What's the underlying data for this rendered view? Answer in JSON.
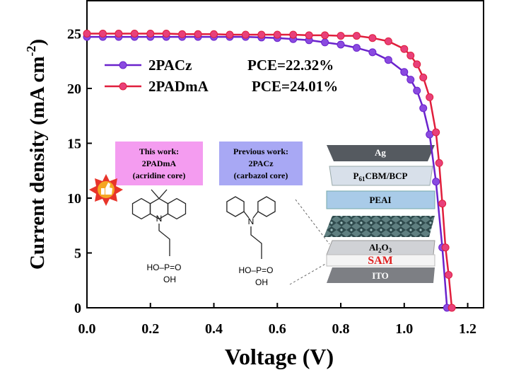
{
  "chart_data": {
    "type": "line",
    "xlabel": "Voltage (V)",
    "ylabel": [
      "Current density (mA cm",
      "-2",
      ")"
    ],
    "xlim": [
      0,
      1.25
    ],
    "ylim": [
      0,
      28
    ],
    "xticks": [
      {
        "value": 0,
        "label": "0.0"
      },
      {
        "value": 0.2,
        "label": "0.2"
      },
      {
        "value": 0.4,
        "label": "0.4"
      },
      {
        "value": 0.6,
        "label": "0.6"
      },
      {
        "value": 0.8,
        "label": "0.8"
      },
      {
        "value": 1.0,
        "label": "1.0"
      },
      {
        "value": 1.2,
        "label": "1.2"
      }
    ],
    "yticks": [
      0,
      5,
      10,
      15,
      20,
      25
    ],
    "series": [
      {
        "name": "2PACz",
        "color": "#6a22cc",
        "marker_color": "#8a4ae0",
        "x": [
          0,
          0.05,
          0.1,
          0.15,
          0.2,
          0.25,
          0.3,
          0.35,
          0.4,
          0.45,
          0.5,
          0.55,
          0.6,
          0.65,
          0.7,
          0.75,
          0.8,
          0.85,
          0.9,
          0.95,
          1.0,
          1.02,
          1.04,
          1.06,
          1.08,
          1.1,
          1.12,
          1.135
        ],
        "values": [
          24.7,
          24.7,
          24.7,
          24.7,
          24.7,
          24.7,
          24.7,
          24.7,
          24.7,
          24.7,
          24.7,
          24.65,
          24.6,
          24.5,
          24.4,
          24.2,
          24.0,
          23.7,
          23.3,
          22.6,
          21.5,
          20.8,
          19.8,
          18.2,
          15.8,
          11.5,
          5.5,
          0
        ]
      },
      {
        "name": "2PADmA",
        "color": "#e01e3c",
        "marker_color": "#e8407a",
        "x": [
          0,
          0.05,
          0.1,
          0.15,
          0.2,
          0.25,
          0.3,
          0.35,
          0.4,
          0.45,
          0.5,
          0.55,
          0.6,
          0.65,
          0.7,
          0.75,
          0.8,
          0.85,
          0.9,
          0.95,
          1.0,
          1.02,
          1.04,
          1.06,
          1.08,
          1.1,
          1.11,
          1.12,
          1.13,
          1.14,
          1.15
        ],
        "values": [
          25.0,
          25.0,
          25.0,
          25.0,
          25.0,
          25.0,
          24.95,
          24.95,
          24.95,
          24.9,
          24.9,
          24.9,
          24.9,
          24.9,
          24.85,
          24.85,
          24.8,
          24.8,
          24.6,
          24.3,
          23.6,
          23.0,
          22.2,
          21.0,
          19.2,
          16.0,
          13.2,
          9.5,
          5.5,
          3.0,
          0
        ]
      }
    ],
    "annotations": [
      "PCE=22.32%",
      "PCE=24.01%"
    ],
    "inset": {
      "this_work": [
        "This work:",
        "2PADmA",
        "(acridine core)"
      ],
      "previous_work": [
        "Previous work:",
        "2PACz",
        "(carbazol core)"
      ],
      "molecule": {
        "n": "N",
        "acid": "HO–P=O",
        "oh": "OH"
      },
      "layers": {
        "ag": "Ag",
        "pcbm": [
          "P",
          "61",
          "CBM/BCP"
        ],
        "peai": "PEAI",
        "al2o3": [
          "Al",
          "2",
          "O",
          "3"
        ],
        "sam": "SAM",
        "ito": "ITO"
      }
    }
  }
}
